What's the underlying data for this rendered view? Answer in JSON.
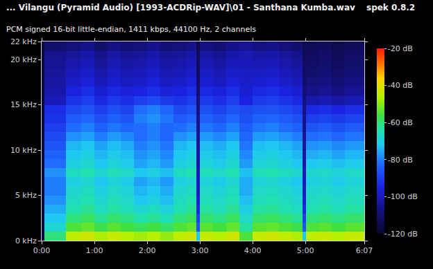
{
  "chart_data": {
    "type": "heatmap",
    "title": "... Vilangu (Pyramid Audio) [1993-ACDRip-WAV]\\01 - Santhana Kumba.wav",
    "subtitle": "PCM signed 16-bit little-endian, 1411 kbps, 44100 Hz, 2 channels",
    "software": "spek 0.8.2",
    "grid": false,
    "xlim": [
      0,
      367
    ],
    "xticks": [
      {
        "value": 0,
        "label": "0:00"
      },
      {
        "value": 60,
        "label": "1:00"
      },
      {
        "value": 120,
        "label": "2:00"
      },
      {
        "value": 180,
        "label": "3:00"
      },
      {
        "value": 240,
        "label": "4:00"
      },
      {
        "value": 300,
        "label": "5:00"
      },
      {
        "value": 367,
        "label": "6:07"
      }
    ],
    "ylim": [
      0,
      22
    ],
    "yticks": [
      {
        "value": 0,
        "label": "0 kHz"
      },
      {
        "value": 5,
        "label": "5 kHz"
      },
      {
        "value": 10,
        "label": "10 kHz"
      },
      {
        "value": 15,
        "label": "15 kHz"
      },
      {
        "value": 20,
        "label": "20 kHz"
      },
      {
        "value": 22,
        "label": "22 kHz"
      }
    ],
    "colorbar": {
      "range": [
        -120,
        -20
      ],
      "ticks": [
        {
          "value": -20,
          "label": "-20 dB"
        },
        {
          "value": -40,
          "label": "-40 dB"
        },
        {
          "value": -60,
          "label": "-60 dB"
        },
        {
          "value": -80,
          "label": "-80 dB"
        },
        {
          "value": -100,
          "label": "-100 dB"
        },
        {
          "value": -120,
          "label": "-120 dB"
        }
      ]
    },
    "time_bins": [
      0,
      3,
      28,
      45,
      60,
      75,
      90,
      105,
      120,
      135,
      150,
      165,
      176,
      180,
      195,
      210,
      225,
      240,
      255,
      270,
      285,
      297,
      301,
      315,
      330,
      345,
      367
    ],
    "freq_bins": [
      0,
      1,
      2,
      3,
      4,
      5,
      6,
      7,
      8,
      9,
      10,
      11,
      12,
      13,
      14,
      15,
      16,
      17,
      18,
      19,
      20,
      21,
      22
    ],
    "cells": [
      [
        -118,
        -60,
        -45,
        -43,
        -47,
        -44,
        -46,
        -48,
        -46,
        -49,
        -45,
        -43,
        -72,
        -44,
        -46,
        -43,
        -55,
        -44,
        -43,
        -45,
        -47,
        -72,
        -45,
        -44,
        -46,
        -44
      ],
      [
        -118,
        -68,
        -55,
        -53,
        -57,
        -54,
        -56,
        -58,
        -56,
        -59,
        -55,
        -53,
        -86,
        -54,
        -56,
        -53,
        -63,
        -54,
        -53,
        -55,
        -57,
        -86,
        -55,
        -54,
        -56,
        -54
      ],
      [
        -118,
        -72,
        -60,
        -58,
        -62,
        -59,
        -61,
        -64,
        -62,
        -65,
        -60,
        -58,
        -90,
        -59,
        -61,
        -58,
        -67,
        -59,
        -58,
        -60,
        -62,
        -90,
        -60,
        -59,
        -61,
        -59
      ],
      [
        -118,
        -75,
        -64,
        -62,
        -66,
        -63,
        -65,
        -68,
        -66,
        -69,
        -64,
        -62,
        -94,
        -63,
        -65,
        -62,
        -70,
        -63,
        -62,
        -64,
        -66,
        -94,
        -64,
        -63,
        -65,
        -63
      ],
      [
        -118,
        -78,
        -66,
        -64,
        -68,
        -65,
        -67,
        -72,
        -70,
        -73,
        -66,
        -64,
        -97,
        -65,
        -67,
        -64,
        -73,
        -65,
        -64,
        -66,
        -68,
        -97,
        -66,
        -65,
        -67,
        -65
      ],
      [
        -118,
        -80,
        -68,
        -66,
        -70,
        -67,
        -69,
        -74,
        -72,
        -75,
        -68,
        -66,
        -99,
        -67,
        -69,
        -66,
        -75,
        -67,
        -66,
        -68,
        -70,
        -99,
        -68,
        -67,
        -69,
        -67
      ],
      [
        -118,
        -80,
        -70,
        -68,
        -72,
        -69,
        -71,
        -76,
        -74,
        -77,
        -70,
        -68,
        -100,
        -69,
        -71,
        -68,
        -75,
        -69,
        -68,
        -70,
        -72,
        -100,
        -70,
        -69,
        -71,
        -69
      ],
      [
        -118,
        -78,
        -66,
        -64,
        -68,
        -65,
        -67,
        -72,
        -70,
        -73,
        -66,
        -64,
        -100,
        -65,
        -67,
        -64,
        -73,
        -65,
        -64,
        -66,
        -68,
        -100,
        -68,
        -67,
        -69,
        -67
      ],
      [
        -118,
        -82,
        -70,
        -68,
        -72,
        -69,
        -71,
        -76,
        -74,
        -77,
        -70,
        -68,
        -102,
        -69,
        -71,
        -68,
        -77,
        -69,
        -68,
        -70,
        -72,
        -102,
        -72,
        -71,
        -73,
        -71
      ],
      [
        -118,
        -84,
        -72,
        -70,
        -74,
        -71,
        -73,
        -78,
        -76,
        -79,
        -72,
        -70,
        -103,
        -71,
        -73,
        -70,
        -79,
        -71,
        -70,
        -72,
        -74,
        -103,
        -75,
        -74,
        -76,
        -74
      ],
      [
        -118,
        -86,
        -74,
        -72,
        -76,
        -73,
        -75,
        -80,
        -78,
        -81,
        -74,
        -72,
        -104,
        -73,
        -75,
        -72,
        -81,
        -73,
        -72,
        -74,
        -76,
        -104,
        -78,
        -77,
        -79,
        -77
      ],
      [
        -118,
        -88,
        -78,
        -76,
        -80,
        -77,
        -79,
        -82,
        -80,
        -83,
        -78,
        -76,
        -105,
        -77,
        -79,
        -76,
        -83,
        -77,
        -76,
        -78,
        -80,
        -105,
        -82,
        -81,
        -83,
        -81
      ],
      [
        -118,
        -90,
        -82,
        -80,
        -84,
        -81,
        -83,
        -82,
        -80,
        -83,
        -82,
        -80,
        -106,
        -81,
        -83,
        -80,
        -85,
        -81,
        -80,
        -82,
        -84,
        -106,
        -86,
        -85,
        -87,
        -85
      ],
      [
        -118,
        -92,
        -85,
        -83,
        -87,
        -84,
        -86,
        -80,
        -78,
        -81,
        -85,
        -83,
        -106,
        -84,
        -86,
        -83,
        -87,
        -84,
        -83,
        -85,
        -87,
        -106,
        -90,
        -89,
        -91,
        -89
      ],
      [
        -118,
        -93,
        -88,
        -86,
        -90,
        -87,
        -89,
        -82,
        -80,
        -83,
        -88,
        -86,
        -107,
        -87,
        -89,
        -86,
        -88,
        -87,
        -86,
        -88,
        -90,
        -107,
        -94,
        -93,
        -95,
        -93
      ],
      [
        -118,
        -100,
        -92,
        -90,
        -94,
        -91,
        -93,
        -90,
        -88,
        -91,
        -92,
        -90,
        -108,
        -91,
        -93,
        -90,
        -95,
        -91,
        -90,
        -92,
        -94,
        -108,
        -102,
        -101,
        -103,
        -101
      ],
      [
        -118,
        -102,
        -95,
        -93,
        -97,
        -94,
        -96,
        -95,
        -93,
        -96,
        -95,
        -93,
        -110,
        -94,
        -96,
        -93,
        -97,
        -94,
        -93,
        -95,
        -97,
        -110,
        -106,
        -105,
        -107,
        -105
      ],
      [
        -118,
        -103,
        -98,
        -96,
        -100,
        -97,
        -99,
        -98,
        -96,
        -99,
        -98,
        -96,
        -111,
        -97,
        -99,
        -96,
        -98,
        -97,
        -96,
        -98,
        -100,
        -111,
        -108,
        -107,
        -109,
        -107
      ],
      [
        -118,
        -104,
        -100,
        -98,
        -102,
        -99,
        -101,
        -100,
        -98,
        -101,
        -100,
        -98,
        -112,
        -99,
        -101,
        -98,
        -99,
        -99,
        -98,
        -100,
        -102,
        -112,
        -110,
        -109,
        -111,
        -109
      ],
      [
        -118,
        -105,
        -102,
        -100,
        -104,
        -101,
        -103,
        -102,
        -100,
        -103,
        -102,
        -100,
        -112,
        -101,
        -103,
        -100,
        -100,
        -101,
        -100,
        -102,
        -104,
        -112,
        -111,
        -110,
        -112,
        -110
      ],
      [
        -118,
        -106,
        -104,
        -102,
        -106,
        -103,
        -105,
        -104,
        -102,
        -105,
        -104,
        -102,
        -113,
        -103,
        -105,
        -102,
        -101,
        -103,
        -102,
        -104,
        -106,
        -113,
        -112,
        -111,
        -113,
        -111
      ],
      [
        -118,
        -110,
        -108,
        -106,
        -110,
        -107,
        -109,
        -108,
        -106,
        -109,
        -108,
        -106,
        -115,
        -107,
        -109,
        -106,
        -105,
        -107,
        -106,
        -108,
        -110,
        -115,
        -114,
        -113,
        -115,
        -113
      ]
    ]
  }
}
